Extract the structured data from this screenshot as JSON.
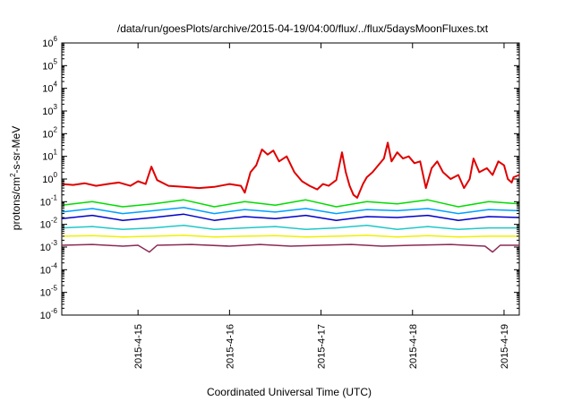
{
  "chart_data": {
    "type": "line",
    "title": "/data/run/goesPlots/archive/2015-04-19/04:00/flux/../flux/5daysMoonFluxes.txt",
    "xlabel": "Coordinated Universal Time (UTC)",
    "ylabel": {
      "base": "protons/cm",
      "sup": "2",
      "rest": "-s-sr-MeV"
    },
    "yscale": "log",
    "ylim": [
      1e-06,
      1000000.0
    ],
    "yticks": [
      {
        "value": 1000000.0,
        "base": "10",
        "exp": "6"
      },
      {
        "value": 100000.0,
        "base": "10",
        "exp": "5"
      },
      {
        "value": 10000.0,
        "base": "10",
        "exp": "4"
      },
      {
        "value": 1000.0,
        "base": "10",
        "exp": "3"
      },
      {
        "value": 100.0,
        "base": "10",
        "exp": "2"
      },
      {
        "value": 10.0,
        "base": "10",
        "exp": "1"
      },
      {
        "value": 1.0,
        "base": "10",
        "exp": "0"
      },
      {
        "value": 0.1,
        "base": "10",
        "exp": "-1"
      },
      {
        "value": 0.01,
        "base": "10",
        "exp": "-2"
      },
      {
        "value": 0.001,
        "base": "10",
        "exp": "-3"
      },
      {
        "value": 0.0001,
        "base": "10",
        "exp": "-4"
      },
      {
        "value": 1e-05,
        "base": "10",
        "exp": "-5"
      },
      {
        "value": 1e-06,
        "base": "10",
        "exp": "-6"
      }
    ],
    "xlim": [
      "2015-04-14 04:00",
      "2015-04-19 04:00"
    ],
    "xticks": [
      {
        "value": "2015-04-15 00:00",
        "label": "2015-4-15"
      },
      {
        "value": "2015-04-16 00:00",
        "label": "2015-4-16"
      },
      {
        "value": "2015-04-17 00:00",
        "label": "2015-4-17"
      },
      {
        "value": "2015-04-18 00:00",
        "label": "2015-4-18"
      },
      {
        "value": "2015-04-19 00:00",
        "label": "2015-4-19"
      }
    ],
    "grid": false,
    "series": [
      {
        "color": "#e00000",
        "points": [
          [
            "2015-04-14 04:00",
            0.6
          ],
          [
            "2015-04-14 07:00",
            0.55
          ],
          [
            "2015-04-14 10:00",
            0.65
          ],
          [
            "2015-04-14 13:00",
            0.5
          ],
          [
            "2015-04-14 16:00",
            0.6
          ],
          [
            "2015-04-14 19:00",
            0.7
          ],
          [
            "2015-04-14 22:00",
            0.5
          ],
          [
            "2015-04-15 00:00",
            0.8
          ],
          [
            "2015-04-15 02:00",
            0.6
          ],
          [
            "2015-04-15 03:30",
            3.5
          ],
          [
            "2015-04-15 05:00",
            0.9
          ],
          [
            "2015-04-15 08:00",
            0.5
          ],
          [
            "2015-04-15 12:00",
            0.45
          ],
          [
            "2015-04-15 16:00",
            0.4
          ],
          [
            "2015-04-15 20:00",
            0.45
          ],
          [
            "2015-04-16 00:00",
            0.6
          ],
          [
            "2015-04-16 03:00",
            0.5
          ],
          [
            "2015-04-16 04:00",
            0.25
          ],
          [
            "2015-04-16 05:30",
            2
          ],
          [
            "2015-04-16 07:00",
            4
          ],
          [
            "2015-04-16 08:30",
            20
          ],
          [
            "2015-04-16 10:00",
            12
          ],
          [
            "2015-04-16 11:30",
            18
          ],
          [
            "2015-04-16 13:00",
            6
          ],
          [
            "2015-04-16 15:00",
            10
          ],
          [
            "2015-04-16 17:00",
            2
          ],
          [
            "2015-04-16 19:00",
            0.8
          ],
          [
            "2015-04-16 21:00",
            0.5
          ],
          [
            "2015-04-16 23:00",
            0.35
          ],
          [
            "2015-04-17 00:30",
            0.6
          ],
          [
            "2015-04-17 02:00",
            0.5
          ],
          [
            "2015-04-17 04:00",
            0.9
          ],
          [
            "2015-04-17 05:30",
            15
          ],
          [
            "2015-04-17 06:30",
            2
          ],
          [
            "2015-04-17 07:30",
            0.5
          ],
          [
            "2015-04-17 08:30",
            0.2
          ],
          [
            "2015-04-17 09:30",
            0.15
          ],
          [
            "2015-04-17 11:00",
            0.6
          ],
          [
            "2015-04-17 12:00",
            1.2
          ],
          [
            "2015-04-17 13:30",
            2
          ],
          [
            "2015-04-17 15:00",
            4
          ],
          [
            "2015-04-17 16:30",
            8
          ],
          [
            "2015-04-17 17:30",
            40
          ],
          [
            "2015-04-17 18:30",
            6
          ],
          [
            "2015-04-17 20:00",
            15
          ],
          [
            "2015-04-17 21:30",
            8
          ],
          [
            "2015-04-17 23:00",
            10
          ],
          [
            "2015-04-18 00:30",
            5
          ],
          [
            "2015-04-18 02:00",
            6
          ],
          [
            "2015-04-18 03:30",
            0.4
          ],
          [
            "2015-04-18 05:00",
            3
          ],
          [
            "2015-04-18 06:30",
            6
          ],
          [
            "2015-04-18 08:00",
            2
          ],
          [
            "2015-04-18 10:00",
            1
          ],
          [
            "2015-04-18 12:00",
            1.5
          ],
          [
            "2015-04-18 13:30",
            0.4
          ],
          [
            "2015-04-18 15:00",
            1
          ],
          [
            "2015-04-18 16:00",
            8
          ],
          [
            "2015-04-18 17:30",
            2
          ],
          [
            "2015-04-18 19:30",
            3
          ],
          [
            "2015-04-18 21:00",
            1.5
          ],
          [
            "2015-04-18 22:30",
            6
          ],
          [
            "2015-04-19 00:00",
            4
          ],
          [
            "2015-04-19 01:00",
            1
          ],
          [
            "2015-04-19 02:00",
            0.7
          ],
          [
            "2015-04-19 02:30",
            1.2
          ],
          [
            "2015-04-19 04:00",
            1.5
          ]
        ]
      },
      {
        "color": "#00dd00",
        "points": [
          [
            "2015-04-14 04:00",
            0.07
          ],
          [
            "2015-04-14 12:00",
            0.1
          ],
          [
            "2015-04-14 20:00",
            0.06
          ],
          [
            "2015-04-15 04:00",
            0.08
          ],
          [
            "2015-04-15 12:00",
            0.12
          ],
          [
            "2015-04-15 20:00",
            0.06
          ],
          [
            "2015-04-16 04:00",
            0.1
          ],
          [
            "2015-04-16 12:00",
            0.07
          ],
          [
            "2015-04-16 20:00",
            0.12
          ],
          [
            "2015-04-17 04:00",
            0.06
          ],
          [
            "2015-04-17 12:00",
            0.1
          ],
          [
            "2015-04-17 20:00",
            0.08
          ],
          [
            "2015-04-18 04:00",
            0.12
          ],
          [
            "2015-04-18 12:00",
            0.06
          ],
          [
            "2015-04-18 20:00",
            0.1
          ],
          [
            "2015-04-19 04:00",
            0.08
          ]
        ]
      },
      {
        "color": "#00a0ff",
        "points": [
          [
            "2015-04-14 04:00",
            0.035
          ],
          [
            "2015-04-14 12:00",
            0.05
          ],
          [
            "2015-04-14 20:00",
            0.03
          ],
          [
            "2015-04-15 04:00",
            0.04
          ],
          [
            "2015-04-15 12:00",
            0.055
          ],
          [
            "2015-04-15 20:00",
            0.03
          ],
          [
            "2015-04-16 04:00",
            0.045
          ],
          [
            "2015-04-16 12:00",
            0.035
          ],
          [
            "2015-04-16 20:00",
            0.05
          ],
          [
            "2015-04-17 04:00",
            0.03
          ],
          [
            "2015-04-17 12:00",
            0.045
          ],
          [
            "2015-04-17 20:00",
            0.04
          ],
          [
            "2015-04-18 04:00",
            0.05
          ],
          [
            "2015-04-18 12:00",
            0.03
          ],
          [
            "2015-04-18 20:00",
            0.045
          ],
          [
            "2015-04-19 04:00",
            0.04
          ]
        ]
      },
      {
        "color": "#0000cc",
        "points": [
          [
            "2015-04-14 04:00",
            0.018
          ],
          [
            "2015-04-14 12:00",
            0.025
          ],
          [
            "2015-04-14 20:00",
            0.015
          ],
          [
            "2015-04-15 04:00",
            0.02
          ],
          [
            "2015-04-15 12:00",
            0.028
          ],
          [
            "2015-04-15 20:00",
            0.015
          ],
          [
            "2015-04-16 04:00",
            0.022
          ],
          [
            "2015-04-16 12:00",
            0.018
          ],
          [
            "2015-04-16 20:00",
            0.025
          ],
          [
            "2015-04-17 04:00",
            0.015
          ],
          [
            "2015-04-17 12:00",
            0.022
          ],
          [
            "2015-04-17 20:00",
            0.02
          ],
          [
            "2015-04-18 04:00",
            0.025
          ],
          [
            "2015-04-18 12:00",
            0.015
          ],
          [
            "2015-04-18 20:00",
            0.022
          ],
          [
            "2015-04-19 04:00",
            0.02
          ]
        ]
      },
      {
        "color": "#1ec8c8",
        "points": [
          [
            "2015-04-14 04:00",
            0.007
          ],
          [
            "2015-04-14 12:00",
            0.008
          ],
          [
            "2015-04-14 20:00",
            0.006
          ],
          [
            "2015-04-15 04:00",
            0.007
          ],
          [
            "2015-04-15 12:00",
            0.009
          ],
          [
            "2015-04-15 20:00",
            0.006
          ],
          [
            "2015-04-16 04:00",
            0.007
          ],
          [
            "2015-04-16 12:00",
            0.008
          ],
          [
            "2015-04-16 20:00",
            0.006
          ],
          [
            "2015-04-17 04:00",
            0.007
          ],
          [
            "2015-04-17 12:00",
            0.009
          ],
          [
            "2015-04-17 20:00",
            0.006
          ],
          [
            "2015-04-18 04:00",
            0.008
          ],
          [
            "2015-04-18 12:00",
            0.006
          ],
          [
            "2015-04-18 20:00",
            0.007
          ],
          [
            "2015-04-19 04:00",
            0.007
          ]
        ]
      },
      {
        "color": "#f0f000",
        "points": [
          [
            "2015-04-14 04:00",
            0.003
          ],
          [
            "2015-04-14 12:00",
            0.0032
          ],
          [
            "2015-04-14 20:00",
            0.0028
          ],
          [
            "2015-04-15 04:00",
            0.003
          ],
          [
            "2015-04-15 12:00",
            0.0033
          ],
          [
            "2015-04-15 20:00",
            0.0028
          ],
          [
            "2015-04-16 04:00",
            0.003
          ],
          [
            "2015-04-16 12:00",
            0.0032
          ],
          [
            "2015-04-16 20:00",
            0.0028
          ],
          [
            "2015-04-17 04:00",
            0.003
          ],
          [
            "2015-04-17 12:00",
            0.0033
          ],
          [
            "2015-04-17 20:00",
            0.0028
          ],
          [
            "2015-04-18 04:00",
            0.0032
          ],
          [
            "2015-04-18 12:00",
            0.0028
          ],
          [
            "2015-04-18 20:00",
            0.003
          ],
          [
            "2015-04-19 04:00",
            0.003
          ]
        ]
      },
      {
        "color": "#8b2a55",
        "points": [
          [
            "2015-04-14 04:00",
            0.0012
          ],
          [
            "2015-04-14 12:00",
            0.0013
          ],
          [
            "2015-04-14 20:00",
            0.0011
          ],
          [
            "2015-04-15 00:00",
            0.0012
          ],
          [
            "2015-04-15 03:00",
            0.0006
          ],
          [
            "2015-04-15 05:00",
            0.0012
          ],
          [
            "2015-04-15 14:00",
            0.0013
          ],
          [
            "2015-04-16 00:00",
            0.0011
          ],
          [
            "2015-04-16 08:00",
            0.0013
          ],
          [
            "2015-04-16 16:00",
            0.0011
          ],
          [
            "2015-04-17 00:00",
            0.0012
          ],
          [
            "2015-04-17 08:00",
            0.0013
          ],
          [
            "2015-04-17 16:00",
            0.0011
          ],
          [
            "2015-04-18 00:00",
            0.0012
          ],
          [
            "2015-04-18 10:00",
            0.0013
          ],
          [
            "2015-04-18 19:00",
            0.0011
          ],
          [
            "2015-04-18 21:00",
            0.0006
          ],
          [
            "2015-04-18 23:00",
            0.0012
          ],
          [
            "2015-04-19 04:00",
            0.0012
          ]
        ]
      }
    ]
  }
}
